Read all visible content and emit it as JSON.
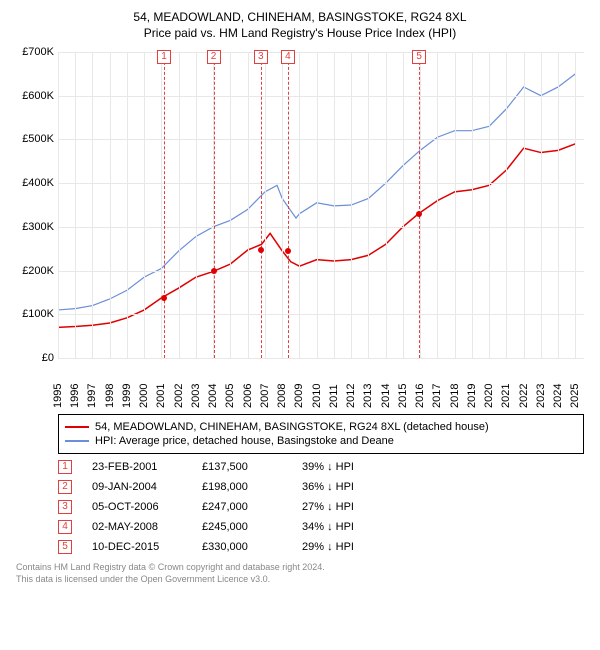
{
  "title": "54, MEADOWLAND, CHINEHAM, BASINGSTOKE, RG24 8XL",
  "subtitle": "Price paid vs. HM Land Registry's House Price Index (HPI)",
  "chart": {
    "type": "line",
    "background_color": "#ffffff",
    "grid_color": "#e8e8e8",
    "x_years": [
      1995,
      1996,
      1997,
      1998,
      1999,
      2000,
      2001,
      2002,
      2003,
      2004,
      2005,
      2006,
      2007,
      2008,
      2009,
      2010,
      2011,
      2012,
      2013,
      2014,
      2015,
      2016,
      2017,
      2018,
      2019,
      2020,
      2021,
      2022,
      2023,
      2024,
      2025
    ],
    "xlim": [
      1995,
      2025.5
    ],
    "ylim": [
      0,
      700000
    ],
    "ytick_step": 100000,
    "yticks_labels": [
      "£0",
      "£100K",
      "£200K",
      "£300K",
      "£400K",
      "£500K",
      "£600K",
      "£700K"
    ],
    "label_fontsize": 11,
    "series": [
      {
        "name": "property",
        "color": "#e00000",
        "width": 1.5,
        "points": [
          [
            1995,
            70000
          ],
          [
            1996,
            72000
          ],
          [
            1997,
            75000
          ],
          [
            1998,
            80000
          ],
          [
            1999,
            92000
          ],
          [
            2000,
            110000
          ],
          [
            2001,
            137500
          ],
          [
            2002,
            160000
          ],
          [
            2003,
            185000
          ],
          [
            2004,
            198000
          ],
          [
            2005,
            215000
          ],
          [
            2006,
            247000
          ],
          [
            2006.8,
            260000
          ],
          [
            2007.3,
            285000
          ],
          [
            2008,
            245000
          ],
          [
            2008.5,
            220000
          ],
          [
            2009,
            210000
          ],
          [
            2010,
            225000
          ],
          [
            2011,
            222000
          ],
          [
            2012,
            225000
          ],
          [
            2013,
            235000
          ],
          [
            2014,
            260000
          ],
          [
            2015,
            300000
          ],
          [
            2015.9,
            330000
          ],
          [
            2017,
            360000
          ],
          [
            2018,
            380000
          ],
          [
            2019,
            385000
          ],
          [
            2020,
            395000
          ],
          [
            2021,
            430000
          ],
          [
            2022,
            480000
          ],
          [
            2023,
            470000
          ],
          [
            2024,
            475000
          ],
          [
            2025,
            490000
          ]
        ]
      },
      {
        "name": "hpi",
        "color": "#6a8fd8",
        "width": 1.2,
        "points": [
          [
            1995,
            110000
          ],
          [
            1996,
            113000
          ],
          [
            1997,
            120000
          ],
          [
            1998,
            135000
          ],
          [
            1999,
            155000
          ],
          [
            2000,
            185000
          ],
          [
            2001,
            205000
          ],
          [
            2002,
            245000
          ],
          [
            2003,
            278000
          ],
          [
            2004,
            300000
          ],
          [
            2005,
            315000
          ],
          [
            2006,
            340000
          ],
          [
            2007,
            380000
          ],
          [
            2007.7,
            395000
          ],
          [
            2008,
            365000
          ],
          [
            2008.8,
            320000
          ],
          [
            2009,
            330000
          ],
          [
            2010,
            355000
          ],
          [
            2011,
            348000
          ],
          [
            2012,
            350000
          ],
          [
            2013,
            365000
          ],
          [
            2014,
            400000
          ],
          [
            2015,
            440000
          ],
          [
            2016,
            475000
          ],
          [
            2017,
            505000
          ],
          [
            2018,
            520000
          ],
          [
            2019,
            520000
          ],
          [
            2020,
            530000
          ],
          [
            2021,
            570000
          ],
          [
            2022,
            620000
          ],
          [
            2023,
            600000
          ],
          [
            2024,
            620000
          ],
          [
            2025,
            650000
          ]
        ]
      }
    ],
    "sale_points": [
      {
        "x": 2001.15,
        "y": 137500
      },
      {
        "x": 2004.02,
        "y": 198000
      },
      {
        "x": 2006.76,
        "y": 247000
      },
      {
        "x": 2008.33,
        "y": 245000
      },
      {
        "x": 2015.94,
        "y": 330000
      }
    ],
    "markers": [
      {
        "n": "1",
        "x": 2001.15
      },
      {
        "n": "2",
        "x": 2004.02
      },
      {
        "n": "3",
        "x": 2006.76
      },
      {
        "n": "4",
        "x": 2008.33
      },
      {
        "n": "5",
        "x": 2015.94
      }
    ],
    "marker_color": "#e04040"
  },
  "legend": {
    "items": [
      {
        "color": "#e00000",
        "label": "54, MEADOWLAND, CHINEHAM, BASINGSTOKE, RG24 8XL (detached house)"
      },
      {
        "color": "#6a8fd8",
        "label": "HPI: Average price, detached house, Basingstoke and Deane"
      }
    ]
  },
  "transactions": [
    {
      "n": "1",
      "date": "23-FEB-2001",
      "price": "£137,500",
      "diff": "39% ↓ HPI"
    },
    {
      "n": "2",
      "date": "09-JAN-2004",
      "price": "£198,000",
      "diff": "36% ↓ HPI"
    },
    {
      "n": "3",
      "date": "05-OCT-2006",
      "price": "£247,000",
      "diff": "27% ↓ HPI"
    },
    {
      "n": "4",
      "date": "02-MAY-2008",
      "price": "£245,000",
      "diff": "34% ↓ HPI"
    },
    {
      "n": "5",
      "date": "10-DEC-2015",
      "price": "£330,000",
      "diff": "29% ↓ HPI"
    }
  ],
  "footer": {
    "line1": "Contains HM Land Registry data © Crown copyright and database right 2024.",
    "line2": "This data is licensed under the Open Government Licence v3.0."
  }
}
